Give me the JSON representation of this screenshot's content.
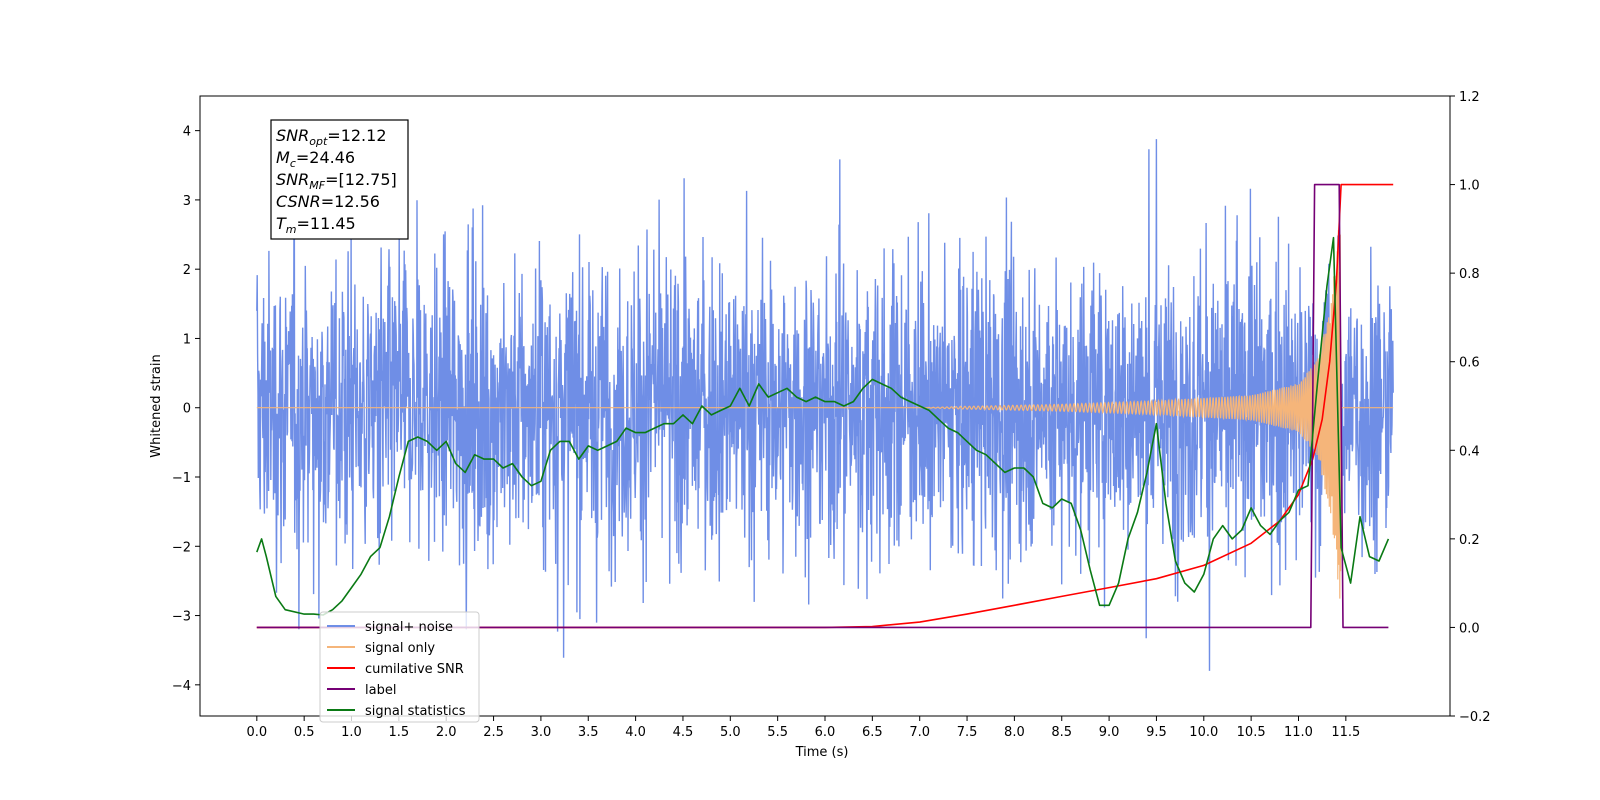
{
  "chart_data": {
    "type": "line",
    "xlabel": "Time (s)",
    "ylabel": "Whitened strain",
    "xlim": [
      -0.6,
      12.6
    ],
    "ylim": [
      -4.45,
      4.5
    ],
    "y2lim": [
      -0.2,
      1.2
    ],
    "x_ticks": [
      0.0,
      0.5,
      1.0,
      1.5,
      2.0,
      2.5,
      3.0,
      3.5,
      4.0,
      4.5,
      5.0,
      5.5,
      6.0,
      6.5,
      7.0,
      7.5,
      8.0,
      8.5,
      9.0,
      9.5,
      10.0,
      10.5,
      11.0,
      11.5
    ],
    "x_tick_labels": [
      "0.0",
      "0.5",
      "1.0",
      "1.5",
      "2.0",
      "2.5",
      "3.0",
      "3.5",
      "4.0",
      "4.5",
      "5.0",
      "5.5",
      "6.0",
      "6.5",
      "7.0",
      "7.5",
      "8.0",
      "8.5",
      "9.0",
      "9.5",
      "10.0",
      "10.5",
      "11.0",
      "11.5"
    ],
    "y_ticks": [
      -4,
      -3,
      -2,
      -1,
      0,
      1,
      2,
      3,
      4
    ],
    "y_tick_labels": [
      "−4",
      "−3",
      "−2",
      "−1",
      "0",
      "1",
      "2",
      "3",
      "4"
    ],
    "y2_ticks": [
      -0.2,
      0.0,
      0.2,
      0.4,
      0.6,
      0.8,
      1.0,
      1.2
    ],
    "y2_tick_labels": [
      "−0.2",
      "0.0",
      "0.2",
      "0.4",
      "0.6",
      "0.8",
      "1.0",
      "1.2"
    ],
    "legend_position": "lower-left",
    "series": [
      {
        "name": "signal+ noise",
        "axis": "left",
        "color": "#6f8ee6",
        "description_range": [
          -3.85,
          4.12
        ],
        "x_range": [
          0.0,
          12.0
        ]
      },
      {
        "name": "signal only",
        "axis": "left",
        "color": "#f5b57a",
        "x_range": [
          0.0,
          12.0
        ],
        "envelope_points": {
          "x": [
            0.0,
            7.0,
            7.5,
            8.5,
            9.5,
            10.5,
            11.0,
            11.2,
            11.35,
            11.45
          ],
          "amp": [
            0.0,
            0.0,
            0.02,
            0.05,
            0.1,
            0.18,
            0.35,
            0.7,
            1.6,
            3.0
          ]
        }
      },
      {
        "name": "cumilative SNR",
        "axis": "right",
        "color": "#ff0000",
        "x": [
          0.0,
          5.0,
          6.0,
          6.5,
          7.0,
          7.5,
          8.0,
          8.5,
          9.0,
          9.5,
          10.0,
          10.5,
          10.8,
          11.0,
          11.15,
          11.25,
          11.33,
          11.4,
          11.45,
          11.5,
          12.0
        ],
        "y": [
          0.0,
          0.0,
          0.0,
          0.002,
          0.012,
          0.03,
          0.05,
          0.07,
          0.09,
          0.11,
          0.14,
          0.19,
          0.24,
          0.3,
          0.38,
          0.47,
          0.6,
          0.78,
          1.0,
          1.0,
          1.0
        ]
      },
      {
        "name": "label",
        "axis": "right",
        "color": "#750075",
        "x": [
          0.0,
          11.13,
          11.17,
          11.43,
          11.47,
          11.95
        ],
        "y": [
          0.0,
          0.0,
          1.0,
          1.0,
          0.0,
          0.0
        ]
      },
      {
        "name": "signal statistics",
        "axis": "right",
        "color": "#0a7a14",
        "x": [
          0.0,
          0.05,
          0.1,
          0.2,
          0.3,
          0.5,
          0.6,
          0.7,
          0.8,
          0.9,
          1.0,
          1.1,
          1.2,
          1.3,
          1.4,
          1.5,
          1.6,
          1.7,
          1.8,
          1.9,
          2.0,
          2.1,
          2.2,
          2.3,
          2.4,
          2.5,
          2.6,
          2.7,
          2.8,
          2.9,
          3.0,
          3.1,
          3.2,
          3.3,
          3.4,
          3.5,
          3.6,
          3.7,
          3.8,
          3.9,
          4.0,
          4.1,
          4.2,
          4.3,
          4.4,
          4.5,
          4.6,
          4.7,
          4.8,
          4.9,
          5.0,
          5.1,
          5.2,
          5.3,
          5.4,
          5.5,
          5.6,
          5.7,
          5.8,
          5.9,
          6.0,
          6.1,
          6.2,
          6.3,
          6.4,
          6.5,
          6.6,
          6.7,
          6.8,
          6.9,
          7.0,
          7.1,
          7.2,
          7.3,
          7.4,
          7.5,
          7.6,
          7.7,
          7.8,
          7.9,
          8.0,
          8.1,
          8.2,
          8.3,
          8.4,
          8.5,
          8.6,
          8.7,
          8.8,
          8.9,
          9.0,
          9.1,
          9.2,
          9.3,
          9.4,
          9.5,
          9.6,
          9.7,
          9.8,
          9.9,
          10.0,
          10.1,
          10.2,
          10.3,
          10.4,
          10.5,
          10.6,
          10.7,
          10.8,
          10.9,
          11.0,
          11.1,
          11.2,
          11.3,
          11.37,
          11.45,
          11.55,
          11.65,
          11.75,
          11.85,
          11.95
        ],
        "y": [
          0.17,
          0.2,
          0.16,
          0.07,
          0.04,
          0.03,
          0.03,
          0.028,
          0.04,
          0.06,
          0.09,
          0.12,
          0.16,
          0.18,
          0.25,
          0.34,
          0.42,
          0.43,
          0.42,
          0.4,
          0.42,
          0.37,
          0.35,
          0.39,
          0.38,
          0.38,
          0.36,
          0.37,
          0.34,
          0.32,
          0.33,
          0.4,
          0.42,
          0.42,
          0.38,
          0.41,
          0.4,
          0.41,
          0.42,
          0.45,
          0.44,
          0.44,
          0.45,
          0.46,
          0.46,
          0.48,
          0.46,
          0.5,
          0.48,
          0.49,
          0.5,
          0.54,
          0.5,
          0.55,
          0.52,
          0.53,
          0.54,
          0.52,
          0.51,
          0.52,
          0.51,
          0.51,
          0.5,
          0.51,
          0.54,
          0.56,
          0.55,
          0.54,
          0.52,
          0.51,
          0.5,
          0.49,
          0.47,
          0.45,
          0.44,
          0.42,
          0.4,
          0.39,
          0.37,
          0.35,
          0.36,
          0.36,
          0.34,
          0.28,
          0.27,
          0.29,
          0.28,
          0.22,
          0.13,
          0.05,
          0.05,
          0.1,
          0.2,
          0.26,
          0.35,
          0.46,
          0.28,
          0.15,
          0.1,
          0.08,
          0.12,
          0.2,
          0.23,
          0.2,
          0.22,
          0.27,
          0.23,
          0.21,
          0.24,
          0.26,
          0.31,
          0.32,
          0.55,
          0.77,
          0.88,
          0.18,
          0.1,
          0.25,
          0.16,
          0.15,
          0.2
        ]
      }
    ]
  },
  "stats_box": {
    "lines": [
      {
        "base": "SNR",
        "sub": "opt",
        "value": "=12.12"
      },
      {
        "base": "M",
        "sub": "c",
        "value": "=24.46"
      },
      {
        "base": "SNR",
        "sub": "MF",
        "value": "=[12.75]"
      },
      {
        "base": "CSNR",
        "sub": "",
        "value": "=12.56"
      },
      {
        "base": "T",
        "sub": "m",
        "value": "=11.45"
      }
    ]
  },
  "legend": {
    "entries": [
      {
        "label": "signal+ noise",
        "color": "#6f8ee6"
      },
      {
        "label": "signal only",
        "color": "#f5b57a"
      },
      {
        "label": "cumilative SNR",
        "color": "#ff0000"
      },
      {
        "label": "label",
        "color": "#750075"
      },
      {
        "label": "signal statistics",
        "color": "#0a7a14"
      }
    ]
  }
}
